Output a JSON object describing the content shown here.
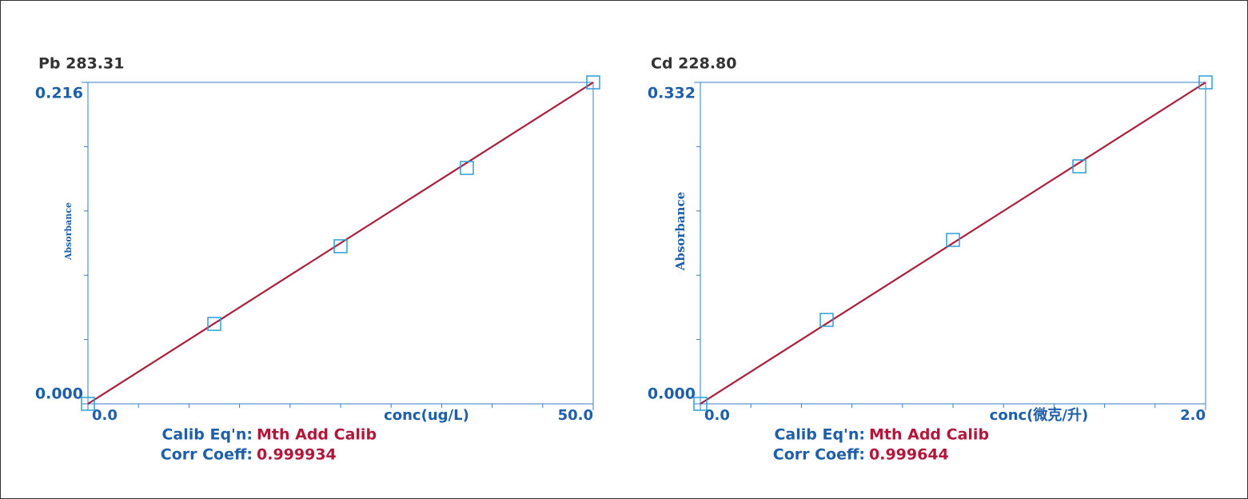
{
  "chart_data": [
    {
      "type": "scatter",
      "title": "Pb 283.31",
      "xlabel": "conc(ug/L)",
      "ylabel": "Absorbance",
      "x": [
        0,
        12.5,
        25,
        37.5,
        50
      ],
      "y": [
        0,
        0.0537,
        0.1059,
        0.1585,
        0.216
      ],
      "xlim": [
        0,
        50
      ],
      "ylim": [
        0,
        0.216
      ],
      "xticks": [
        {
          "value": 0,
          "label": "0.0"
        },
        {
          "value": 50,
          "label": "50.0"
        }
      ],
      "yticks": [
        {
          "value": 0,
          "label": "0.000"
        },
        0.216
      ],
      "marker_color": "#2a9fd6",
      "line_color": "#a8203c",
      "calib_label": "Calib Eq'n:",
      "calib_value": "Mth Add Calib",
      "corr_label": "Corr Coeff:",
      "corr_value": 0.999934
    },
    {
      "type": "scatter",
      "title": "Cd 228.80",
      "xlabel": "conc(微克/升)",
      "ylabel": "Absorbance",
      "x": [
        0,
        0.5,
        1.0,
        1.5,
        2.0
      ],
      "y": [
        0,
        0.0867,
        0.1693,
        0.2453,
        0.332
      ],
      "xlim": [
        0,
        2
      ],
      "ylim": [
        0,
        0.332
      ],
      "xticks": [
        {
          "value": 0,
          "label": "0.0"
        },
        {
          "value": 2,
          "label": "2.0"
        }
      ],
      "yticks": [
        {
          "value": 0,
          "label": "0.000"
        },
        0.332
      ],
      "marker_color": "#2a9fd6",
      "line_color": "#a8203c",
      "calib_label": "Calib Eq'n:",
      "calib_value": "Mth Add Calib",
      "corr_label": "Corr Coeff:",
      "corr_value": 0.999644
    }
  ]
}
